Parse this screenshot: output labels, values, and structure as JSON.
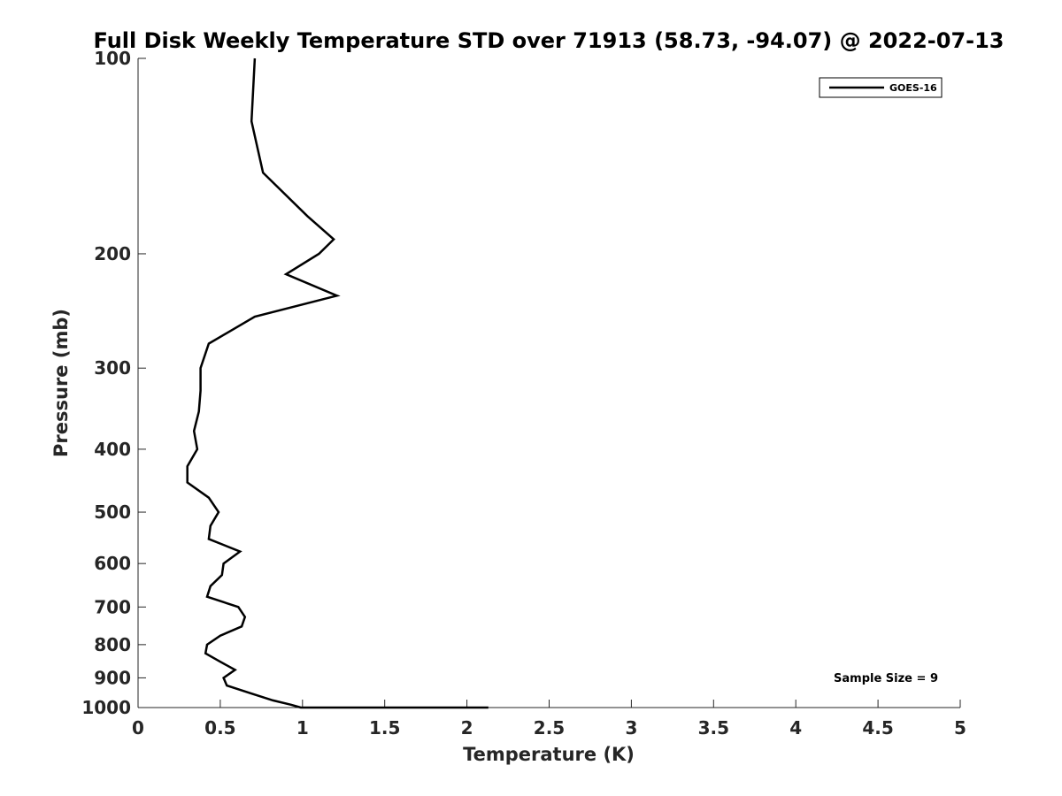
{
  "chart_data": {
    "type": "line",
    "title": "Full Disk Weekly Temperature STD over 71913 (58.73, -94.07) @ 2022-07-13",
    "xlabel": "Temperature (K)",
    "ylabel": "Pressure (mb)",
    "xlim": [
      0,
      5
    ],
    "ylim": [
      100,
      1000
    ],
    "y_scale": "log",
    "y_reversed": true,
    "x_ticks": [
      "0",
      "0.5",
      "1",
      "1.5",
      "2",
      "2.5",
      "3",
      "3.5",
      "4",
      "4.5",
      "5"
    ],
    "y_ticks": [
      "100",
      "200",
      "300",
      "400",
      "500",
      "600",
      "700",
      "800",
      "900",
      "1000"
    ],
    "grid": false,
    "legend": {
      "placement": "top-right",
      "entries": [
        "GOES-16"
      ]
    },
    "annotation": "Sample Size = 9",
    "series": [
      {
        "name": "GOES-16",
        "color": "#000000",
        "points": [
          [
            0.71,
            100
          ],
          [
            0.69,
            125
          ],
          [
            0.76,
            150
          ],
          [
            1.03,
            175
          ],
          [
            1.19,
            190
          ],
          [
            1.1,
            200
          ],
          [
            0.9,
            215
          ],
          [
            1.21,
            232
          ],
          [
            0.71,
            250
          ],
          [
            0.43,
            275
          ],
          [
            0.38,
            300
          ],
          [
            0.38,
            325
          ],
          [
            0.37,
            350
          ],
          [
            0.34,
            375
          ],
          [
            0.36,
            400
          ],
          [
            0.3,
            425
          ],
          [
            0.3,
            450
          ],
          [
            0.43,
            475
          ],
          [
            0.49,
            500
          ],
          [
            0.44,
            525
          ],
          [
            0.43,
            550
          ],
          [
            0.62,
            575
          ],
          [
            0.52,
            600
          ],
          [
            0.51,
            625
          ],
          [
            0.44,
            650
          ],
          [
            0.42,
            675
          ],
          [
            0.61,
            700
          ],
          [
            0.65,
            725
          ],
          [
            0.63,
            750
          ],
          [
            0.5,
            775
          ],
          [
            0.42,
            800
          ],
          [
            0.41,
            825
          ],
          [
            0.5,
            850
          ],
          [
            0.59,
            875
          ],
          [
            0.52,
            900
          ],
          [
            0.54,
            925
          ],
          [
            0.68,
            950
          ],
          [
            0.82,
            975
          ],
          [
            0.93,
            990
          ],
          [
            0.99,
            1000
          ],
          [
            2.13,
            1000
          ]
        ]
      }
    ]
  }
}
